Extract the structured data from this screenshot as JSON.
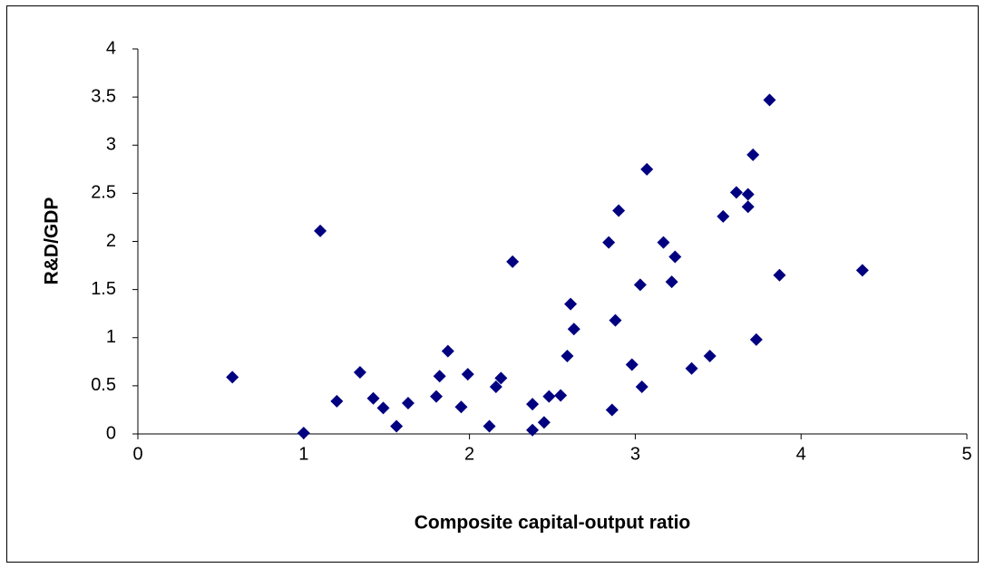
{
  "chart_data": {
    "type": "scatter",
    "x_label": "Composite capital-output ratio",
    "y_label": "R&D/GDP",
    "color": "#000080",
    "x": [
      0.57,
      1.0,
      1.1,
      1.2,
      1.34,
      1.42,
      1.48,
      1.56,
      1.63,
      1.8,
      1.82,
      1.87,
      1.95,
      1.99,
      2.12,
      2.16,
      2.19,
      2.26,
      2.38,
      2.38,
      2.45,
      2.48,
      2.55,
      2.59,
      2.61,
      2.63,
      2.84,
      2.86,
      2.88,
      2.9,
      2.98,
      3.03,
      3.04,
      3.07,
      3.17,
      3.22,
      3.24,
      3.34,
      3.45,
      3.53,
      3.61,
      3.68,
      3.68,
      3.71,
      3.73,
      3.81,
      3.87,
      4.37
    ],
    "values": [
      0.59,
      0.01,
      2.11,
      0.34,
      0.64,
      0.37,
      0.27,
      0.08,
      0.32,
      0.39,
      0.6,
      0.86,
      0.28,
      0.62,
      0.08,
      0.49,
      0.58,
      1.79,
      0.31,
      0.04,
      0.12,
      0.39,
      0.4,
      0.81,
      1.35,
      1.09,
      1.99,
      0.25,
      1.18,
      2.32,
      0.72,
      1.55,
      0.49,
      2.75,
      1.99,
      1.58,
      1.84,
      0.68,
      0.81,
      2.26,
      2.51,
      2.49,
      2.36,
      2.9,
      0.98,
      3.47,
      1.65,
      1.7
    ],
    "xlim": [
      0,
      5
    ],
    "xticks": [
      0,
      1,
      2,
      3,
      4,
      5
    ],
    "ylim": [
      0,
      4
    ],
    "yticks": [
      0,
      0.5,
      1,
      1.5,
      2,
      2.5,
      3,
      3.5,
      4
    ],
    "grid": false
  }
}
